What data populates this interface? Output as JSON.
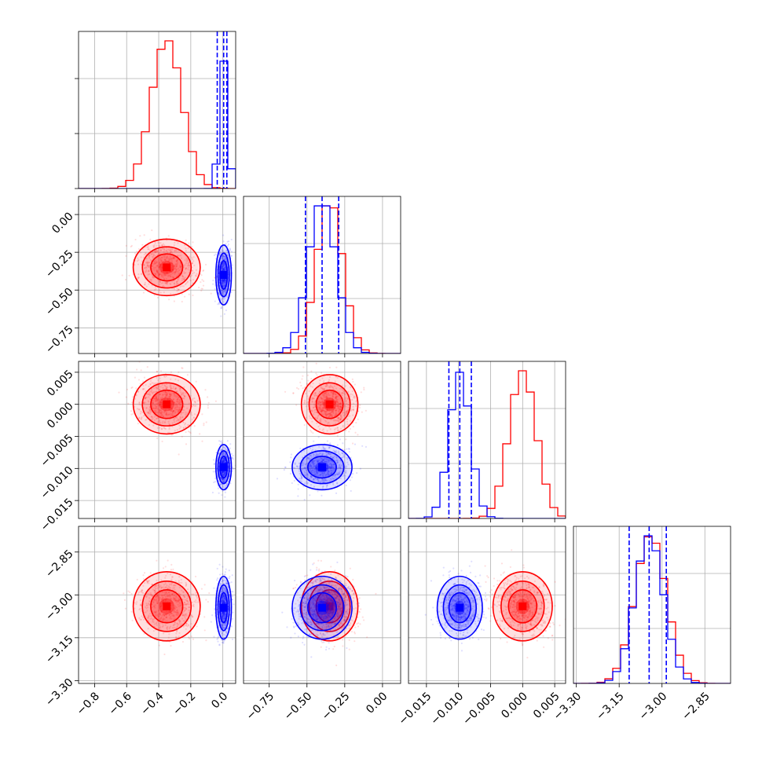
{
  "colors": {
    "red": "#ff0000",
    "blue": "#0000ff",
    "grid": "#b0b0b0"
  },
  "chart_data": {
    "type": "corner",
    "grid": true,
    "parameters": [
      {
        "range": [
          -0.9,
          0.08
        ],
        "xticks": [
          -0.8,
          -0.6,
          -0.4,
          -0.2,
          0.0
        ],
        "xtick_labels": [
          "−0.8",
          "−0.6",
          "−0.4",
          "−0.2",
          "0.0"
        ]
      },
      {
        "range": [
          -0.92,
          0.12
        ],
        "xticks": [
          -0.75,
          -0.5,
          -0.25,
          0.0
        ],
        "xtick_labels": [
          "−0.75",
          "−0.50",
          "−0.25",
          "0.00"
        ],
        "yticks": [
          0.0,
          -0.25,
          -0.5,
          -0.75
        ],
        "ytick_labels": [
          "0.00",
          "−0.25",
          "−0.50",
          "−0.75"
        ]
      },
      {
        "range": [
          -0.0178,
          0.0067
        ],
        "xticks": [
          -0.015,
          -0.01,
          -0.005,
          0.0,
          0.005
        ],
        "xtick_labels": [
          "−0.015",
          "−0.010",
          "−0.005",
          "0.000",
          "0.005"
        ],
        "yticks": [
          0.005,
          0.0,
          -0.005,
          -0.01,
          -0.015
        ],
        "ytick_labels": [
          "0.005",
          "0.000",
          "−0.005",
          "−0.010",
          "−0.015"
        ]
      },
      {
        "range": [
          -3.31,
          -2.76
        ],
        "xticks": [
          -3.3,
          -3.15,
          -3.0,
          -2.85
        ],
        "xtick_labels": [
          "−3.30",
          "−3.15",
          "−3.00",
          "−2.85"
        ],
        "yticks": [
          -2.85,
          -3.0,
          -3.15,
          -3.3
        ],
        "ytick_labels": [
          "−2.85",
          "−3.00",
          "−3.15",
          "−3.30"
        ]
      }
    ],
    "series": [
      {
        "color": "red",
        "mean": [
          -0.35,
          -0.35,
          0.0,
          -3.04
        ],
        "sd": [
          0.095,
          0.085,
          0.0021,
          0.055
        ]
      },
      {
        "color": "blue",
        "mean": [
          0.005,
          -0.4,
          -0.0098,
          -3.045
        ],
        "sd": [
          0.022,
          0.09,
          0.0016,
          0.05
        ]
      }
    ],
    "quantile_lines": [
      [
        -0.035,
        0.005,
        0.025
      ],
      [
        -0.51,
        -0.4,
        -0.29
      ],
      [
        -0.0115,
        -0.0098,
        -0.008
      ],
      [
        -3.115,
        -3.045,
        -2.985
      ]
    ]
  }
}
